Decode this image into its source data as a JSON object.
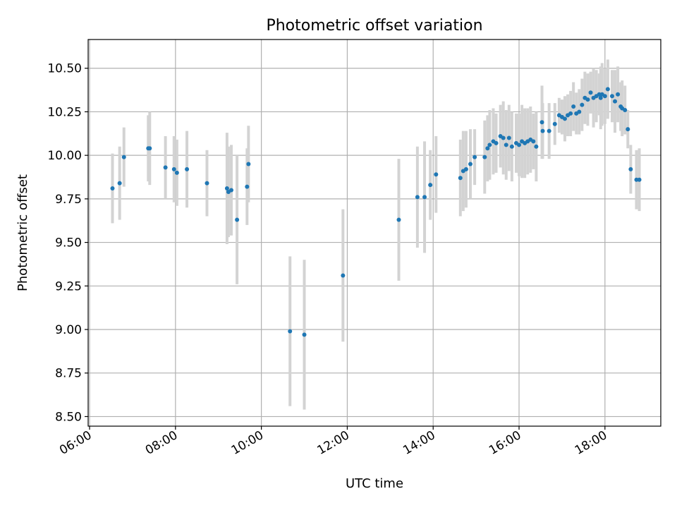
{
  "chart_data": {
    "type": "scatter",
    "title": "Photometric offset variation",
    "xlabel": "UTC time",
    "ylabel": "Photometric offset",
    "x_unit": "hours UTC",
    "xlim": [
      "05:58",
      "19:18"
    ],
    "ylim": [
      8.445,
      10.665
    ],
    "x_ticks": [
      "06:00",
      "08:00",
      "10:00",
      "12:00",
      "14:00",
      "16:00",
      "18:00"
    ],
    "y_ticks": [
      "8.50",
      "8.75",
      "9.00",
      "9.25",
      "9.50",
      "9.75",
      "10.00",
      "10.25",
      "10.50"
    ],
    "grid": true,
    "legend": "none",
    "colors": {
      "points": "#1f77b4",
      "error_bars": "#d3d3d3",
      "grid": "#b0b0b0"
    },
    "series": [
      {
        "x": [
          "06:32",
          "06:42",
          "06:48",
          "07:22",
          "07:24",
          "07:46",
          "07:58",
          "08:02",
          "08:16",
          "08:44",
          "09:12",
          "09:14",
          "09:18",
          "09:26",
          "09:40",
          "09:42",
          "10:40",
          "11:00",
          "11:54",
          "13:12",
          "13:38",
          "13:48",
          "13:56",
          "14:04",
          "14:38",
          "14:42",
          "14:46",
          "14:52",
          "14:58",
          "15:12",
          "15:16",
          "15:19",
          "15:24",
          "15:28",
          "15:34",
          "15:38",
          "15:42",
          "15:46",
          "15:50",
          "15:56",
          "16:00",
          "16:04",
          "16:08",
          "16:12",
          "16:16",
          "16:20",
          "16:24",
          "16:32",
          "16:33",
          "16:42",
          "16:50",
          "16:56",
          "17:00",
          "17:04",
          "17:08",
          "17:12",
          "17:16",
          "17:20",
          "17:24",
          "17:28",
          "17:32",
          "17:36",
          "17:40",
          "17:44",
          "17:48",
          "17:52",
          "17:54",
          "17:56",
          "18:00",
          "18:04",
          "18:10",
          "18:14",
          "18:18",
          "18:22",
          "18:24",
          "18:28",
          "18:32",
          "18:36",
          "18:44",
          "18:48"
        ],
        "y": [
          9.81,
          9.84,
          9.99,
          10.04,
          10.04,
          9.93,
          9.92,
          9.9,
          9.92,
          9.84,
          9.81,
          9.79,
          9.8,
          9.63,
          9.82,
          9.95,
          8.99,
          8.97,
          9.31,
          9.63,
          9.76,
          9.76,
          9.83,
          9.89,
          9.87,
          9.91,
          9.92,
          9.95,
          9.99,
          9.99,
          10.04,
          10.06,
          10.08,
          10.07,
          10.11,
          10.1,
          10.06,
          10.1,
          10.05,
          10.07,
          10.06,
          10.08,
          10.07,
          10.08,
          10.09,
          10.08,
          10.05,
          10.19,
          10.14,
          10.14,
          10.18,
          10.23,
          10.22,
          10.21,
          10.23,
          10.24,
          10.28,
          10.24,
          10.25,
          10.29,
          10.33,
          10.32,
          10.36,
          10.33,
          10.34,
          10.35,
          10.33,
          10.35,
          10.34,
          10.38,
          10.34,
          10.31,
          10.35,
          10.28,
          10.27,
          10.26,
          10.15,
          9.92,
          9.86,
          9.86
        ],
        "error": [
          0.2,
          0.21,
          0.17,
          0.19,
          0.21,
          0.18,
          0.19,
          0.19,
          0.22,
          0.19,
          0.32,
          0.26,
          0.26,
          0.37,
          0.22,
          0.22,
          0.43,
          0.43,
          0.38,
          0.35,
          0.29,
          0.32,
          0.2,
          0.22,
          0.22,
          0.23,
          0.22,
          0.2,
          0.16,
          0.21,
          0.19,
          0.2,
          0.19,
          0.17,
          0.18,
          0.21,
          0.2,
          0.19,
          0.2,
          0.17,
          0.18,
          0.21,
          0.2,
          0.19,
          0.19,
          0.16,
          0.2,
          0.21,
          0.16,
          0.16,
          0.12,
          0.1,
          0.1,
          0.13,
          0.12,
          0.13,
          0.14,
          0.12,
          0.13,
          0.15,
          0.15,
          0.15,
          0.12,
          0.17,
          0.15,
          0.12,
          0.18,
          0.18,
          0.16,
          0.17,
          0.15,
          0.18,
          0.16,
          0.14,
          0.16,
          0.14,
          0.11,
          0.14,
          0.17,
          0.18
        ]
      }
    ]
  }
}
